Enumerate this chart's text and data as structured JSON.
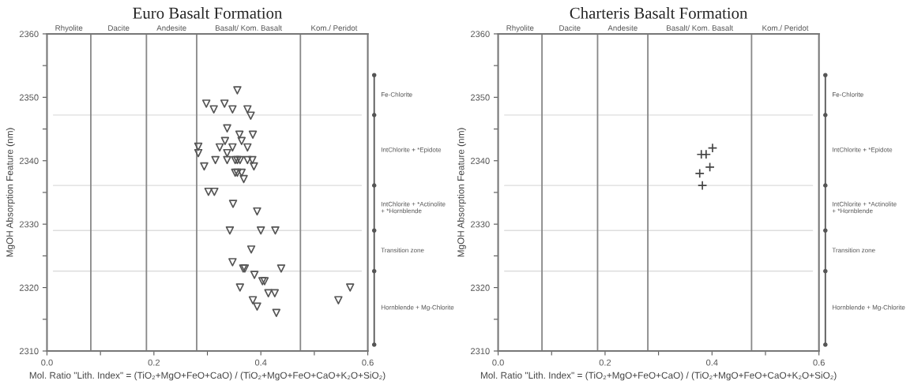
{
  "chart_data": [
    {
      "type": "scatter",
      "title": "Euro Basalt Formation",
      "xlabel": "Mol. Ratio \"Lith. Index\" = (TiO₂+MgO+FeO+CaO) / (TiO₂+MgO+FeO+CaO+K₂O+SiO₂)",
      "ylabel": "MgOH Absorption Feature (nm)",
      "marker": "triangle",
      "color": "#555555",
      "x": [
        0.356,
        0.298,
        0.332,
        0.312,
        0.347,
        0.375,
        0.381,
        0.337,
        0.36,
        0.385,
        0.364,
        0.333,
        0.283,
        0.323,
        0.347,
        0.375,
        0.283,
        0.337,
        0.315,
        0.337,
        0.352,
        0.356,
        0.361,
        0.375,
        0.384,
        0.294,
        0.387,
        0.352,
        0.356,
        0.364,
        0.368,
        0.302,
        0.313,
        0.348,
        0.393,
        0.342,
        0.4,
        0.427,
        0.382,
        0.347,
        0.367,
        0.37,
        0.438,
        0.388,
        0.403,
        0.407,
        0.361,
        0.567,
        0.414,
        0.426,
        0.545,
        0.385,
        0.393,
        0.429
      ],
      "values": [
        2351.1,
        2349.0,
        2349.0,
        2348.1,
        2348.1,
        2348.1,
        2347.1,
        2345.1,
        2344.1,
        2344.1,
        2343.1,
        2343.1,
        2342.2,
        2342.1,
        2342.1,
        2342.1,
        2341.2,
        2341.2,
        2340.1,
        2340.1,
        2340.1,
        2340.1,
        2340.1,
        2340.1,
        2340.1,
        2339.1,
        2339.1,
        2338.1,
        2338.1,
        2338.1,
        2337.1,
        2335.1,
        2335.1,
        2333.2,
        2332.0,
        2329.0,
        2329.0,
        2329.0,
        2326.0,
        2324.0,
        2323.0,
        2323.0,
        2323.0,
        2322.0,
        2321.0,
        2321.0,
        2320.0,
        2320.0,
        2319.1,
        2319.1,
        2318.0,
        2318.0,
        2317.0,
        2316.0
      ],
      "xlim": [
        0,
        0.6
      ],
      "ylim": [
        2310,
        2360
      ],
      "xticks": [
        {
          "value": 0,
          "label": "0.0"
        },
        {
          "value": 0.1,
          "label": null
        },
        {
          "value": 0.2,
          "label": "0.2"
        },
        {
          "value": 0.3,
          "label": null
        },
        {
          "value": 0.4,
          "label": "0.4"
        },
        {
          "value": 0.5,
          "label": null
        },
        {
          "value": 0.6,
          "label": "0.6"
        }
      ],
      "yticks": [
        2310,
        {
          "value": 2315,
          "label": null
        },
        2320,
        {
          "value": 2325,
          "label": null
        },
        2330,
        {
          "value": 2335,
          "label": null
        },
        2340,
        {
          "value": 2345,
          "label": null
        },
        2350,
        {
          "value": 2355,
          "label": null
        },
        2360
      ],
      "ref_lines": [
        {
          "axis": "x",
          "value": 0.082,
          "color": "#888888"
        },
        {
          "axis": "x",
          "value": 0.186,
          "color": "#888888"
        },
        {
          "axis": "x",
          "value": 0.28,
          "color": "#888888"
        },
        {
          "axis": "x",
          "value": 0.474,
          "color": "#888888"
        },
        {
          "axis": "y",
          "value": 2347.2,
          "color": "#dddddd"
        },
        {
          "axis": "y",
          "value": 2336.1,
          "color": "#dddddd"
        },
        {
          "axis": "y",
          "value": 2329,
          "color": "#dddddd"
        },
        {
          "axis": "y",
          "value": 2322.6,
          "color": "#dddddd"
        }
      ],
      "annotations": [
        "Rhyolite",
        "Dacite",
        "Andesite",
        "Basalt/ Kom. Basalt",
        "Kom./ Peridot",
        "Fe-Chlorite",
        "IntChlorite + *Epidote",
        "IntChlorite + *Actinolite + *Hornblende",
        "Transition zone",
        "Hornblende + Mg-Chlorite"
      ]
    },
    {
      "type": "scatter",
      "title": "Charteris Basalt Formation",
      "xlabel": "Mol. Ratio \"Lith. Index\" = (TiO₂+MgO+FeO+CaO) / (TiO₂+MgO+FeO+CaO+K₂O+SiO₂)",
      "ylabel": "MgOH Absorption Feature (nm)",
      "marker": "cross",
      "color": "#444444",
      "x": [
        0.401,
        0.38,
        0.389,
        0.396,
        0.377,
        0.382
      ],
      "values": [
        2342.0,
        2341.0,
        2341.0,
        2339.0,
        2338.0,
        2336.1
      ],
      "xlim": [
        0,
        0.6
      ],
      "ylim": [
        2310,
        2360
      ],
      "xticks": [
        {
          "value": 0,
          "label": "0.0"
        },
        {
          "value": 0.1,
          "label": null
        },
        {
          "value": 0.2,
          "label": "0.2"
        },
        {
          "value": 0.3,
          "label": null
        },
        {
          "value": 0.4,
          "label": "0.4"
        },
        {
          "value": 0.5,
          "label": null
        },
        {
          "value": 0.6,
          "label": "0.6"
        }
      ],
      "yticks": [
        2310,
        {
          "value": 2315,
          "label": null
        },
        2320,
        {
          "value": 2325,
          "label": null
        },
        2330,
        {
          "value": 2335,
          "label": null
        },
        2340,
        {
          "value": 2345,
          "label": null
        },
        2350,
        {
          "value": 2355,
          "label": null
        },
        2360
      ],
      "ref_lines": [
        {
          "axis": "x",
          "value": 0.082,
          "color": "#888888"
        },
        {
          "axis": "x",
          "value": 0.186,
          "color": "#888888"
        },
        {
          "axis": "x",
          "value": 0.28,
          "color": "#888888"
        },
        {
          "axis": "x",
          "value": 0.474,
          "color": "#888888"
        },
        {
          "axis": "y",
          "value": 2347.2,
          "color": "#dddddd"
        },
        {
          "axis": "y",
          "value": 2336.1,
          "color": "#dddddd"
        },
        {
          "axis": "y",
          "value": 2329,
          "color": "#dddddd"
        },
        {
          "axis": "y",
          "value": 2322.6,
          "color": "#dddddd"
        }
      ],
      "annotations": [
        "Rhyolite",
        "Dacite",
        "Andesite",
        "Basalt/ Kom. Basalt",
        "Kom./ Peridot",
        "Fe-Chlorite",
        "IntChlorite + *Epidote",
        "IntChlorite + *Actinolite + *Hornblende",
        "Transition zone",
        "Hornblende + Mg-Chlorite"
      ]
    }
  ]
}
